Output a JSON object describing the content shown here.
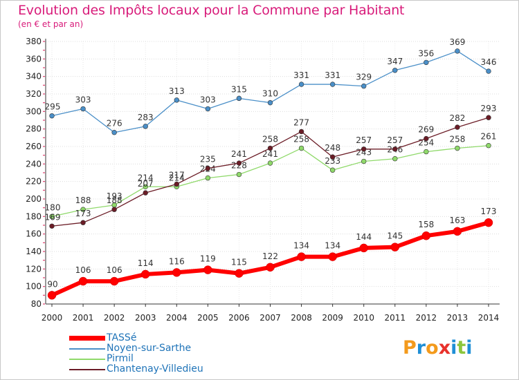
{
  "header": {
    "title": "Evolution des Impôts locaux pour la Commune par Habitant",
    "subtitle": "(en € et par an)"
  },
  "logo": {
    "text": "Proxiti",
    "letters": [
      {
        "ch": "P",
        "color": "#f39a1c"
      },
      {
        "ch": "r",
        "color": "#1f8fd6"
      },
      {
        "ch": "o",
        "color": "#f39a1c"
      },
      {
        "ch": "x",
        "color": "#e8312b"
      },
      {
        "ch": "i",
        "color": "#1f8fd6"
      },
      {
        "ch": "t",
        "color": "#8cc63e"
      },
      {
        "ch": "i",
        "color": "#1f8fd6"
      }
    ]
  },
  "chart_data": {
    "type": "line",
    "title": "Evolution des Impôts locaux pour la Commune par Habitant",
    "subtitle": "(en € et par an)",
    "xlabel": "",
    "ylabel": "",
    "x": [
      "2000",
      "2001",
      "2002",
      "2003",
      "2004",
      "2005",
      "2006",
      "2007",
      "2008",
      "2009",
      "2010",
      "2011",
      "2012",
      "2013",
      "2014"
    ],
    "ylim": [
      80,
      380
    ],
    "yticks": [
      80,
      100,
      120,
      140,
      160,
      180,
      200,
      220,
      240,
      260,
      280,
      300,
      320,
      340,
      360,
      380
    ],
    "grid": true,
    "legend_position": "bottom-left",
    "series": [
      {
        "name": "TASSé",
        "color": "#ff0000",
        "stroke": 6,
        "values": [
          90,
          106,
          106,
          114,
          116,
          119,
          115,
          122,
          134,
          134,
          144,
          145,
          158,
          163,
          173
        ]
      },
      {
        "name": "Noyen-sur-Sarthe",
        "color": "#4a8fc8",
        "stroke": 1.3,
        "values": [
          295,
          303,
          276,
          283,
          313,
          303,
          315,
          310,
          331,
          331,
          329,
          347,
          356,
          369,
          346
        ]
      },
      {
        "name": "Pirmil",
        "color": "#8fd96a",
        "stroke": 1.3,
        "values": [
          180,
          188,
          193,
          214,
          214,
          224,
          228,
          241,
          258,
          233,
          243,
          246,
          254,
          258,
          261
        ]
      },
      {
        "name": "Chantenay-Villedieu",
        "color": "#6b1c26",
        "stroke": 1.3,
        "values": [
          169,
          173,
          188,
          207,
          217,
          235,
          241,
          258,
          277,
          248,
          257,
          257,
          269,
          282,
          293
        ]
      }
    ]
  }
}
